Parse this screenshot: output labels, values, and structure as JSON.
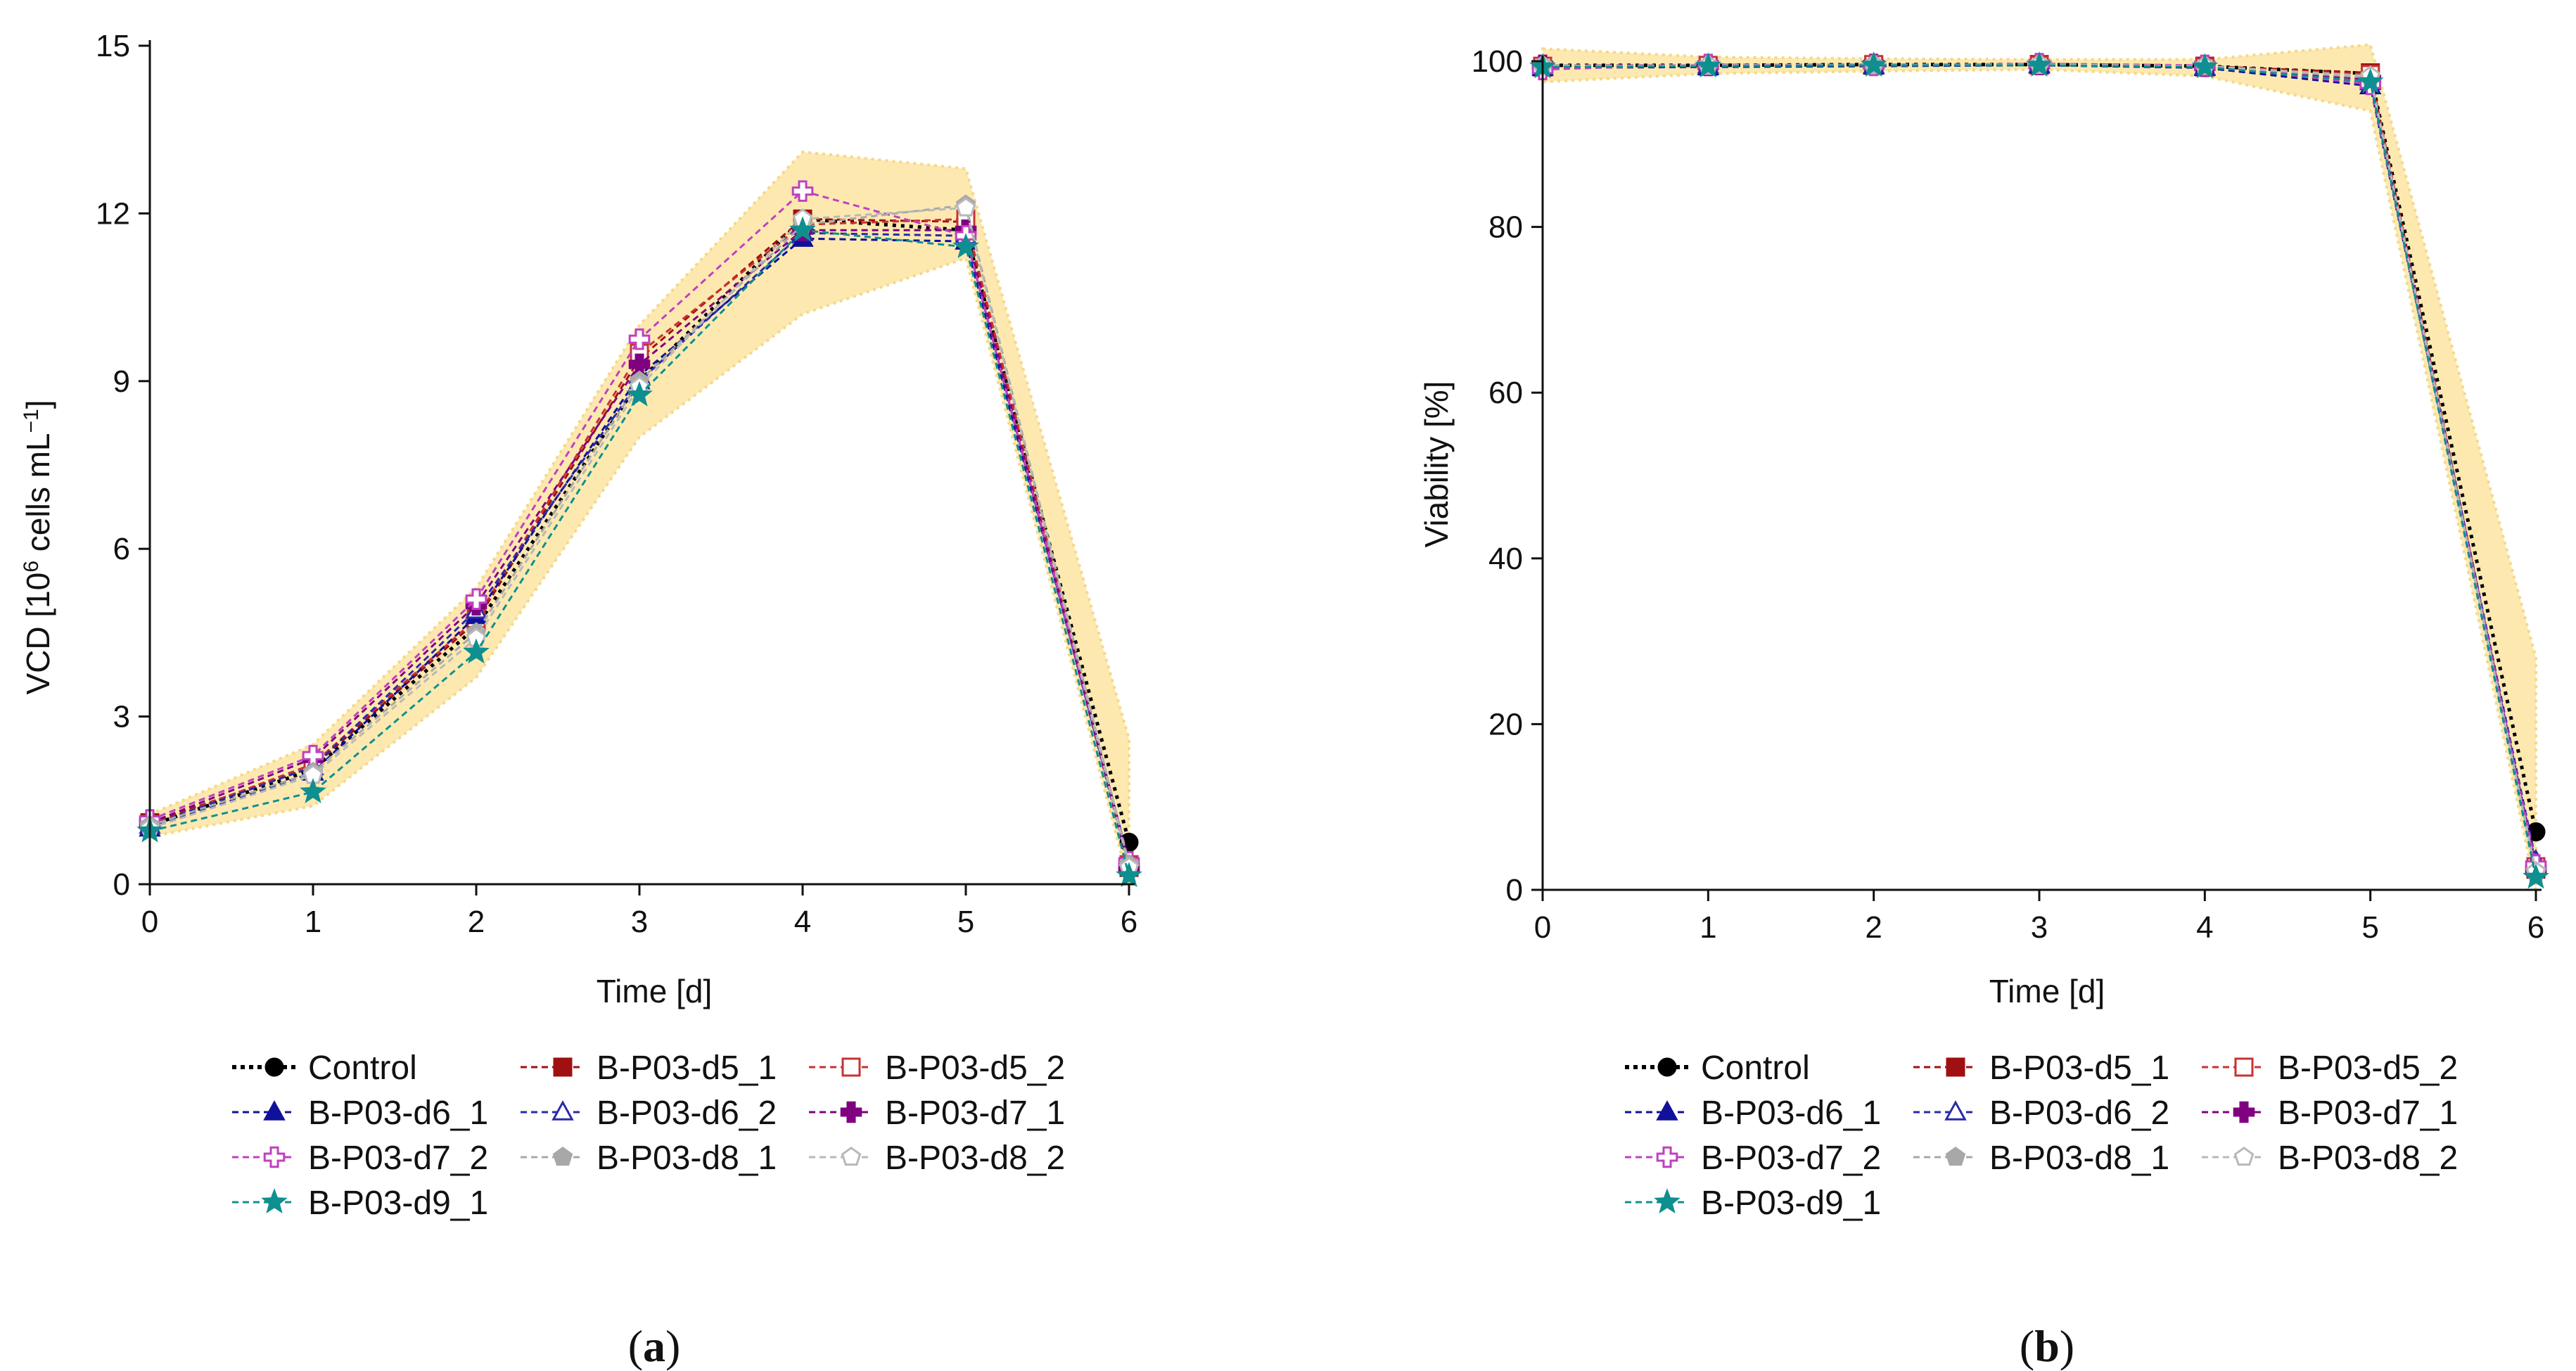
{
  "chart_data": [
    {
      "type": "line",
      "panel_label": "(a)",
      "panel_letter": "a",
      "xlabel": "Time [d]",
      "ylabel_parts": {
        "main": "VCD [10",
        "sup1": "6",
        "mid": " cells mL",
        "sup2": "−1",
        "end": "]"
      },
      "xlim": [
        0,
        6
      ],
      "ylim": [
        0,
        15
      ],
      "x_ticks": [
        0,
        1,
        2,
        3,
        4,
        5,
        6
      ],
      "y_ticks": [
        0,
        3,
        6,
        9,
        12,
        15
      ],
      "x": [
        0,
        1,
        2,
        3,
        4,
        5,
        6
      ],
      "band": {
        "upper": [
          1.25,
          2.5,
          5.3,
          10.0,
          13.1,
          12.8,
          2.6
        ],
        "lower": [
          0.85,
          1.4,
          3.7,
          8.0,
          10.2,
          11.2,
          0.0
        ],
        "color": "#fde9b0"
      },
      "series": [
        {
          "name": "Control",
          "values": [
            1.05,
            2.05,
            4.6,
            9.0,
            11.9,
            11.7,
            0.75
          ]
        },
        {
          "name": "B-P03-d5_1",
          "values": [
            1.1,
            2.1,
            4.7,
            9.4,
            11.9,
            11.85,
            0.3
          ]
        },
        {
          "name": "B-P03-d5_2",
          "values": [
            1.05,
            2.15,
            4.75,
            9.5,
            11.8,
            11.9,
            0.35
          ]
        },
        {
          "name": "B-P03-d6_1",
          "values": [
            1.0,
            2.0,
            4.8,
            9.1,
            11.55,
            11.5,
            0.4
          ]
        },
        {
          "name": "B-P03-d6_2",
          "values": [
            1.05,
            2.1,
            4.9,
            9.0,
            11.65,
            11.6,
            0.35
          ]
        },
        {
          "name": "B-P03-d7_1",
          "values": [
            1.1,
            2.25,
            5.0,
            9.3,
            11.7,
            11.7,
            0.3
          ]
        },
        {
          "name": "B-P03-d7_2",
          "values": [
            1.15,
            2.3,
            5.1,
            9.75,
            12.4,
            11.6,
            0.4
          ]
        },
        {
          "name": "B-P03-d8_1",
          "values": [
            1.05,
            2.0,
            4.5,
            9.0,
            11.8,
            12.15,
            0.35
          ]
        },
        {
          "name": "B-P03-d8_2",
          "values": [
            1.0,
            1.95,
            4.4,
            8.9,
            11.9,
            12.1,
            0.3
          ]
        },
        {
          "name": "B-P03-d9_1",
          "values": [
            0.95,
            1.65,
            4.15,
            8.75,
            11.7,
            11.4,
            0.15
          ]
        }
      ]
    },
    {
      "type": "line",
      "panel_label": "(b)",
      "panel_letter": "b",
      "xlabel": "Time [d]",
      "ylabel": "Viability [%]",
      "xlim": [
        0,
        6
      ],
      "ylim": [
        0,
        100
      ],
      "x_ticks": [
        0,
        1,
        2,
        3,
        4,
        5,
        6
      ],
      "y_ticks": [
        0,
        20,
        40,
        60,
        80,
        100
      ],
      "x": [
        0,
        1,
        2,
        3,
        4,
        5,
        6
      ],
      "band": {
        "upper": [
          101.5,
          100.5,
          100.3,
          100.2,
          100.2,
          102.0,
          28.0
        ],
        "lower": [
          97.5,
          98.5,
          98.8,
          99.0,
          98.2,
          94.0,
          0.0
        ],
        "color": "#fde9b0"
      },
      "series": [
        {
          "name": "Control",
          "values": [
            99.5,
            99.5,
            99.6,
            99.6,
            99.4,
            98.5,
            7.0
          ]
        },
        {
          "name": "B-P03-d5_1",
          "values": [
            99.3,
            99.4,
            99.5,
            99.6,
            99.4,
            98.6,
            2.5
          ]
        },
        {
          "name": "B-P03-d5_2",
          "values": [
            99.4,
            99.5,
            99.6,
            99.5,
            99.3,
            98.4,
            2.8
          ]
        },
        {
          "name": "B-P03-d6_1",
          "values": [
            99.2,
            99.3,
            99.4,
            99.5,
            99.2,
            97.0,
            3.0
          ]
        },
        {
          "name": "B-P03-d6_2",
          "values": [
            99.4,
            99.5,
            99.5,
            99.6,
            99.3,
            97.5,
            3.5
          ]
        },
        {
          "name": "B-P03-d7_1",
          "values": [
            99.5,
            99.5,
            99.6,
            99.6,
            99.4,
            97.8,
            2.5
          ]
        },
        {
          "name": "B-P03-d7_2",
          "values": [
            99.0,
            99.6,
            99.5,
            99.7,
            99.5,
            97.2,
            3.0
          ]
        },
        {
          "name": "B-P03-d8_1",
          "values": [
            99.5,
            99.4,
            99.6,
            99.5,
            99.4,
            98.0,
            2.0
          ]
        },
        {
          "name": "B-P03-d8_2",
          "values": [
            99.4,
            99.5,
            99.5,
            99.6,
            99.4,
            98.2,
            2.2
          ]
        },
        {
          "name": "B-P03-d9_1",
          "values": [
            99.3,
            99.4,
            99.5,
            99.5,
            99.3,
            97.5,
            1.5
          ]
        }
      ]
    }
  ],
  "series_styles": [
    {
      "name": "Control",
      "color": "#000000",
      "marker": "circle",
      "filled": true
    },
    {
      "name": "B-P03-d5_1",
      "color": "#a01010",
      "marker": "square",
      "filled": true
    },
    {
      "name": "B-P03-d5_2",
      "color": "#c83232",
      "marker": "square",
      "filled": false
    },
    {
      "name": "B-P03-d6_1",
      "color": "#10109a",
      "marker": "triangle",
      "filled": true
    },
    {
      "name": "B-P03-d6_2",
      "color": "#2a2aa8",
      "marker": "triangle",
      "filled": false
    },
    {
      "name": "B-P03-d7_1",
      "color": "#800080",
      "marker": "plus",
      "filled": true
    },
    {
      "name": "B-P03-d7_2",
      "color": "#c040c0",
      "marker": "plus",
      "filled": false
    },
    {
      "name": "B-P03-d8_1",
      "color": "#a8a8a8",
      "marker": "pentagon",
      "filled": true
    },
    {
      "name": "B-P03-d8_2",
      "color": "#b8b8b8",
      "marker": "pentagon",
      "filled": false
    },
    {
      "name": "B-P03-d9_1",
      "color": "#0f8f8f",
      "marker": "star",
      "filled": true
    }
  ]
}
